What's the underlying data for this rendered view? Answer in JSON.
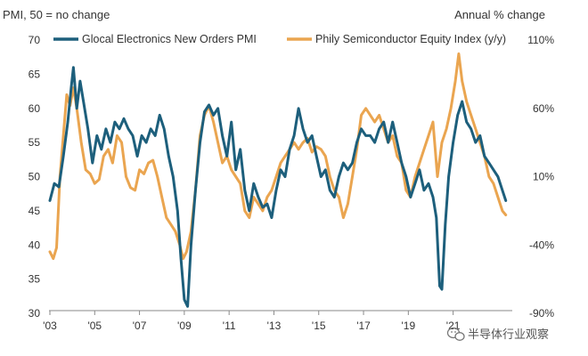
{
  "chart_data": {
    "type": "line",
    "left_axis_title": "PMI, 50 = no change",
    "right_axis_title": "Annual % change",
    "left_ylim": [
      30,
      70
    ],
    "left_ticks": [
      "70",
      "65",
      "60",
      "55",
      "50",
      "45",
      "40",
      "35",
      "30"
    ],
    "right_ylim": [
      -90,
      110
    ],
    "right_ticks": [
      "110%",
      "60%",
      "10%",
      "-40%",
      "-90%"
    ],
    "xlim": [
      2003,
      2023.6
    ],
    "x_ticks": [
      {
        "year": 2003,
        "label": "'03"
      },
      {
        "year": 2005,
        "label": "'05"
      },
      {
        "year": 2007,
        "label": "'07"
      },
      {
        "year": 2009,
        "label": "'09"
      },
      {
        "year": 2011,
        "label": "'11"
      },
      {
        "year": 2013,
        "label": "'13"
      },
      {
        "year": 2015,
        "label": "'15"
      },
      {
        "year": 2017,
        "label": "'17"
      },
      {
        "year": 2019,
        "label": "'19"
      },
      {
        "year": 2021,
        "label": "'21"
      }
    ],
    "series": [
      {
        "name": "Glocal Electronics New Orders PMI",
        "axis": "left",
        "color": "#1d5f7c",
        "points": [
          [
            2003.0,
            46.5
          ],
          [
            2003.2,
            49
          ],
          [
            2003.4,
            48.5
          ],
          [
            2003.6,
            53
          ],
          [
            2003.8,
            58
          ],
          [
            2003.95,
            63
          ],
          [
            2004.05,
            66
          ],
          [
            2004.2,
            60
          ],
          [
            2004.35,
            64
          ],
          [
            2004.5,
            61
          ],
          [
            2004.7,
            57
          ],
          [
            2004.9,
            52
          ],
          [
            2005.1,
            56
          ],
          [
            2005.3,
            54
          ],
          [
            2005.5,
            57
          ],
          [
            2005.7,
            55
          ],
          [
            2005.9,
            58
          ],
          [
            2006.1,
            57
          ],
          [
            2006.3,
            58.5
          ],
          [
            2006.5,
            57
          ],
          [
            2006.7,
            56
          ],
          [
            2006.9,
            53
          ],
          [
            2007.1,
            56
          ],
          [
            2007.3,
            55
          ],
          [
            2007.5,
            57
          ],
          [
            2007.7,
            56
          ],
          [
            2007.9,
            59
          ],
          [
            2008.1,
            57
          ],
          [
            2008.3,
            53
          ],
          [
            2008.5,
            50
          ],
          [
            2008.7,
            45
          ],
          [
            2008.85,
            38
          ],
          [
            2009.0,
            32
          ],
          [
            2009.15,
            31
          ],
          [
            2009.3,
            40
          ],
          [
            2009.5,
            48
          ],
          [
            2009.7,
            55
          ],
          [
            2009.9,
            59.5
          ],
          [
            2010.1,
            60.5
          ],
          [
            2010.3,
            59
          ],
          [
            2010.5,
            60
          ],
          [
            2010.7,
            56
          ],
          [
            2010.9,
            53
          ],
          [
            2011.1,
            58
          ],
          [
            2011.3,
            51
          ],
          [
            2011.5,
            54
          ],
          [
            2011.7,
            48
          ],
          [
            2011.9,
            45
          ],
          [
            2012.1,
            49
          ],
          [
            2012.3,
            47
          ],
          [
            2012.5,
            45.5
          ],
          [
            2012.7,
            46
          ],
          [
            2012.9,
            44
          ],
          [
            2013.1,
            48
          ],
          [
            2013.3,
            51
          ],
          [
            2013.5,
            50
          ],
          [
            2013.7,
            54
          ],
          [
            2013.9,
            56
          ],
          [
            2014.1,
            60
          ],
          [
            2014.3,
            57
          ],
          [
            2014.5,
            55
          ],
          [
            2014.7,
            56
          ],
          [
            2014.9,
            53
          ],
          [
            2015.1,
            50
          ],
          [
            2015.3,
            51
          ],
          [
            2015.5,
            48
          ],
          [
            2015.7,
            47
          ],
          [
            2015.9,
            50
          ],
          [
            2016.1,
            52
          ],
          [
            2016.3,
            51
          ],
          [
            2016.5,
            52
          ],
          [
            2016.7,
            55
          ],
          [
            2016.9,
            57
          ],
          [
            2017.1,
            56
          ],
          [
            2017.3,
            56
          ],
          [
            2017.5,
            55
          ],
          [
            2017.7,
            57
          ],
          [
            2017.9,
            58
          ],
          [
            2018.1,
            55
          ],
          [
            2018.3,
            58
          ],
          [
            2018.5,
            55
          ],
          [
            2018.7,
            52
          ],
          [
            2018.9,
            50
          ],
          [
            2019.1,
            47
          ],
          [
            2019.3,
            49
          ],
          [
            2019.5,
            51
          ],
          [
            2019.7,
            48
          ],
          [
            2019.9,
            49
          ],
          [
            2020.1,
            47
          ],
          [
            2020.25,
            44
          ],
          [
            2020.4,
            34
          ],
          [
            2020.5,
            33.5
          ],
          [
            2020.65,
            43
          ],
          [
            2020.8,
            50
          ],
          [
            2021.0,
            55
          ],
          [
            2021.2,
            59
          ],
          [
            2021.4,
            61
          ],
          [
            2021.6,
            58
          ],
          [
            2021.8,
            57
          ],
          [
            2022.0,
            55
          ],
          [
            2022.2,
            56
          ],
          [
            2022.4,
            53
          ],
          [
            2022.6,
            52
          ],
          [
            2022.8,
            51
          ],
          [
            2023.0,
            50
          ],
          [
            2023.2,
            48
          ],
          [
            2023.35,
            46.5
          ]
        ]
      },
      {
        "name": "Phily Semiconductor Equity Index (y/y)",
        "axis": "right",
        "color": "#eaa550",
        "points": [
          [
            2003.0,
            -45
          ],
          [
            2003.15,
            -50
          ],
          [
            2003.3,
            -42
          ],
          [
            2003.45,
            10
          ],
          [
            2003.6,
            40
          ],
          [
            2003.75,
            70
          ],
          [
            2003.9,
            62
          ],
          [
            2004.05,
            75
          ],
          [
            2004.2,
            60
          ],
          [
            2004.4,
            35
          ],
          [
            2004.6,
            15
          ],
          [
            2004.8,
            12
          ],
          [
            2005.0,
            5
          ],
          [
            2005.2,
            8
          ],
          [
            2005.4,
            25
          ],
          [
            2005.6,
            30
          ],
          [
            2005.8,
            20
          ],
          [
            2006.0,
            40
          ],
          [
            2006.2,
            35
          ],
          [
            2006.4,
            10
          ],
          [
            2006.6,
            2
          ],
          [
            2006.8,
            0
          ],
          [
            2007.0,
            15
          ],
          [
            2007.2,
            12
          ],
          [
            2007.4,
            20
          ],
          [
            2007.6,
            22
          ],
          [
            2007.8,
            10
          ],
          [
            2008.0,
            -5
          ],
          [
            2008.2,
            -20
          ],
          [
            2008.4,
            -25
          ],
          [
            2008.6,
            -30
          ],
          [
            2008.8,
            -40
          ],
          [
            2008.95,
            -50
          ],
          [
            2009.1,
            -45
          ],
          [
            2009.3,
            -30
          ],
          [
            2009.5,
            0
          ],
          [
            2009.7,
            40
          ],
          [
            2009.9,
            55
          ],
          [
            2010.1,
            62
          ],
          [
            2010.3,
            50
          ],
          [
            2010.5,
            35
          ],
          [
            2010.7,
            20
          ],
          [
            2010.9,
            25
          ],
          [
            2011.1,
            15
          ],
          [
            2011.3,
            10
          ],
          [
            2011.5,
            5
          ],
          [
            2011.7,
            -15
          ],
          [
            2011.9,
            -20
          ],
          [
            2012.1,
            -5
          ],
          [
            2012.3,
            -10
          ],
          [
            2012.5,
            -15
          ],
          [
            2012.7,
            -5
          ],
          [
            2012.9,
            0
          ],
          [
            2013.1,
            10
          ],
          [
            2013.3,
            20
          ],
          [
            2013.5,
            25
          ],
          [
            2013.7,
            30
          ],
          [
            2013.9,
            35
          ],
          [
            2014.1,
            30
          ],
          [
            2014.3,
            35
          ],
          [
            2014.5,
            38
          ],
          [
            2014.7,
            28
          ],
          [
            2014.9,
            32
          ],
          [
            2015.1,
            30
          ],
          [
            2015.3,
            25
          ],
          [
            2015.5,
            10
          ],
          [
            2015.7,
            0
          ],
          [
            2015.9,
            -5
          ],
          [
            2016.1,
            -20
          ],
          [
            2016.3,
            -10
          ],
          [
            2016.5,
            10
          ],
          [
            2016.7,
            30
          ],
          [
            2016.9,
            55
          ],
          [
            2017.1,
            60
          ],
          [
            2017.3,
            55
          ],
          [
            2017.5,
            50
          ],
          [
            2017.7,
            55
          ],
          [
            2017.9,
            45
          ],
          [
            2018.1,
            35
          ],
          [
            2018.3,
            40
          ],
          [
            2018.5,
            25
          ],
          [
            2018.7,
            20
          ],
          [
            2018.9,
            0
          ],
          [
            2019.1,
            -5
          ],
          [
            2019.3,
            10
          ],
          [
            2019.5,
            20
          ],
          [
            2019.7,
            30
          ],
          [
            2019.9,
            40
          ],
          [
            2020.1,
            50
          ],
          [
            2020.3,
            10
          ],
          [
            2020.5,
            35
          ],
          [
            2020.7,
            45
          ],
          [
            2020.9,
            60
          ],
          [
            2021.1,
            80
          ],
          [
            2021.25,
            100
          ],
          [
            2021.4,
            80
          ],
          [
            2021.6,
            65
          ],
          [
            2021.8,
            55
          ],
          [
            2022.0,
            45
          ],
          [
            2022.2,
            35
          ],
          [
            2022.4,
            25
          ],
          [
            2022.6,
            10
          ],
          [
            2022.8,
            5
          ],
          [
            2023.0,
            -5
          ],
          [
            2023.2,
            -15
          ],
          [
            2023.35,
            -18
          ]
        ]
      }
    ]
  },
  "watermark": {
    "text": "半导体行业观察",
    "icon": "wechat-icon"
  }
}
